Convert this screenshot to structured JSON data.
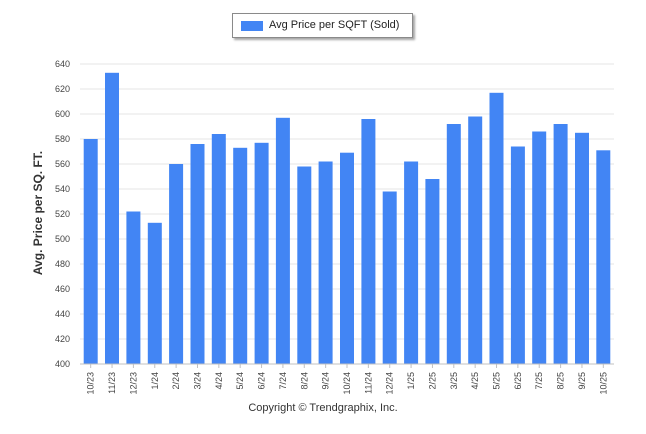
{
  "chart_data": {
    "type": "bar",
    "title": "",
    "xlabel": "",
    "ylabel": "Avg. Price per SQ. FT.",
    "ylim": [
      400,
      640
    ],
    "yticks": [
      400,
      420,
      440,
      460,
      480,
      500,
      520,
      540,
      560,
      580,
      600,
      620,
      640
    ],
    "grid": true,
    "legend_position": "top-center",
    "categories": [
      "10/23",
      "11/23",
      "12/23",
      "1/24",
      "2/24",
      "3/24",
      "4/24",
      "5/24",
      "6/24",
      "7/24",
      "8/24",
      "9/24",
      "10/24",
      "11/24",
      "12/24",
      "1/25",
      "2/25",
      "3/25",
      "4/25",
      "5/25",
      "6/25",
      "7/25",
      "8/25",
      "9/25",
      "10/25"
    ],
    "series": [
      {
        "name": "Avg Price per SQFT (Sold)",
        "color": "#4285f4",
        "values": [
          580,
          633,
          522,
          513,
          560,
          576,
          584,
          573,
          577,
          597,
          558,
          562,
          569,
          596,
          538,
          562,
          548,
          592,
          598,
          617,
          574,
          586,
          592,
          585,
          571
        ]
      }
    ]
  },
  "footer": {
    "copyright": "Copyright © Trendgraphix, Inc."
  }
}
